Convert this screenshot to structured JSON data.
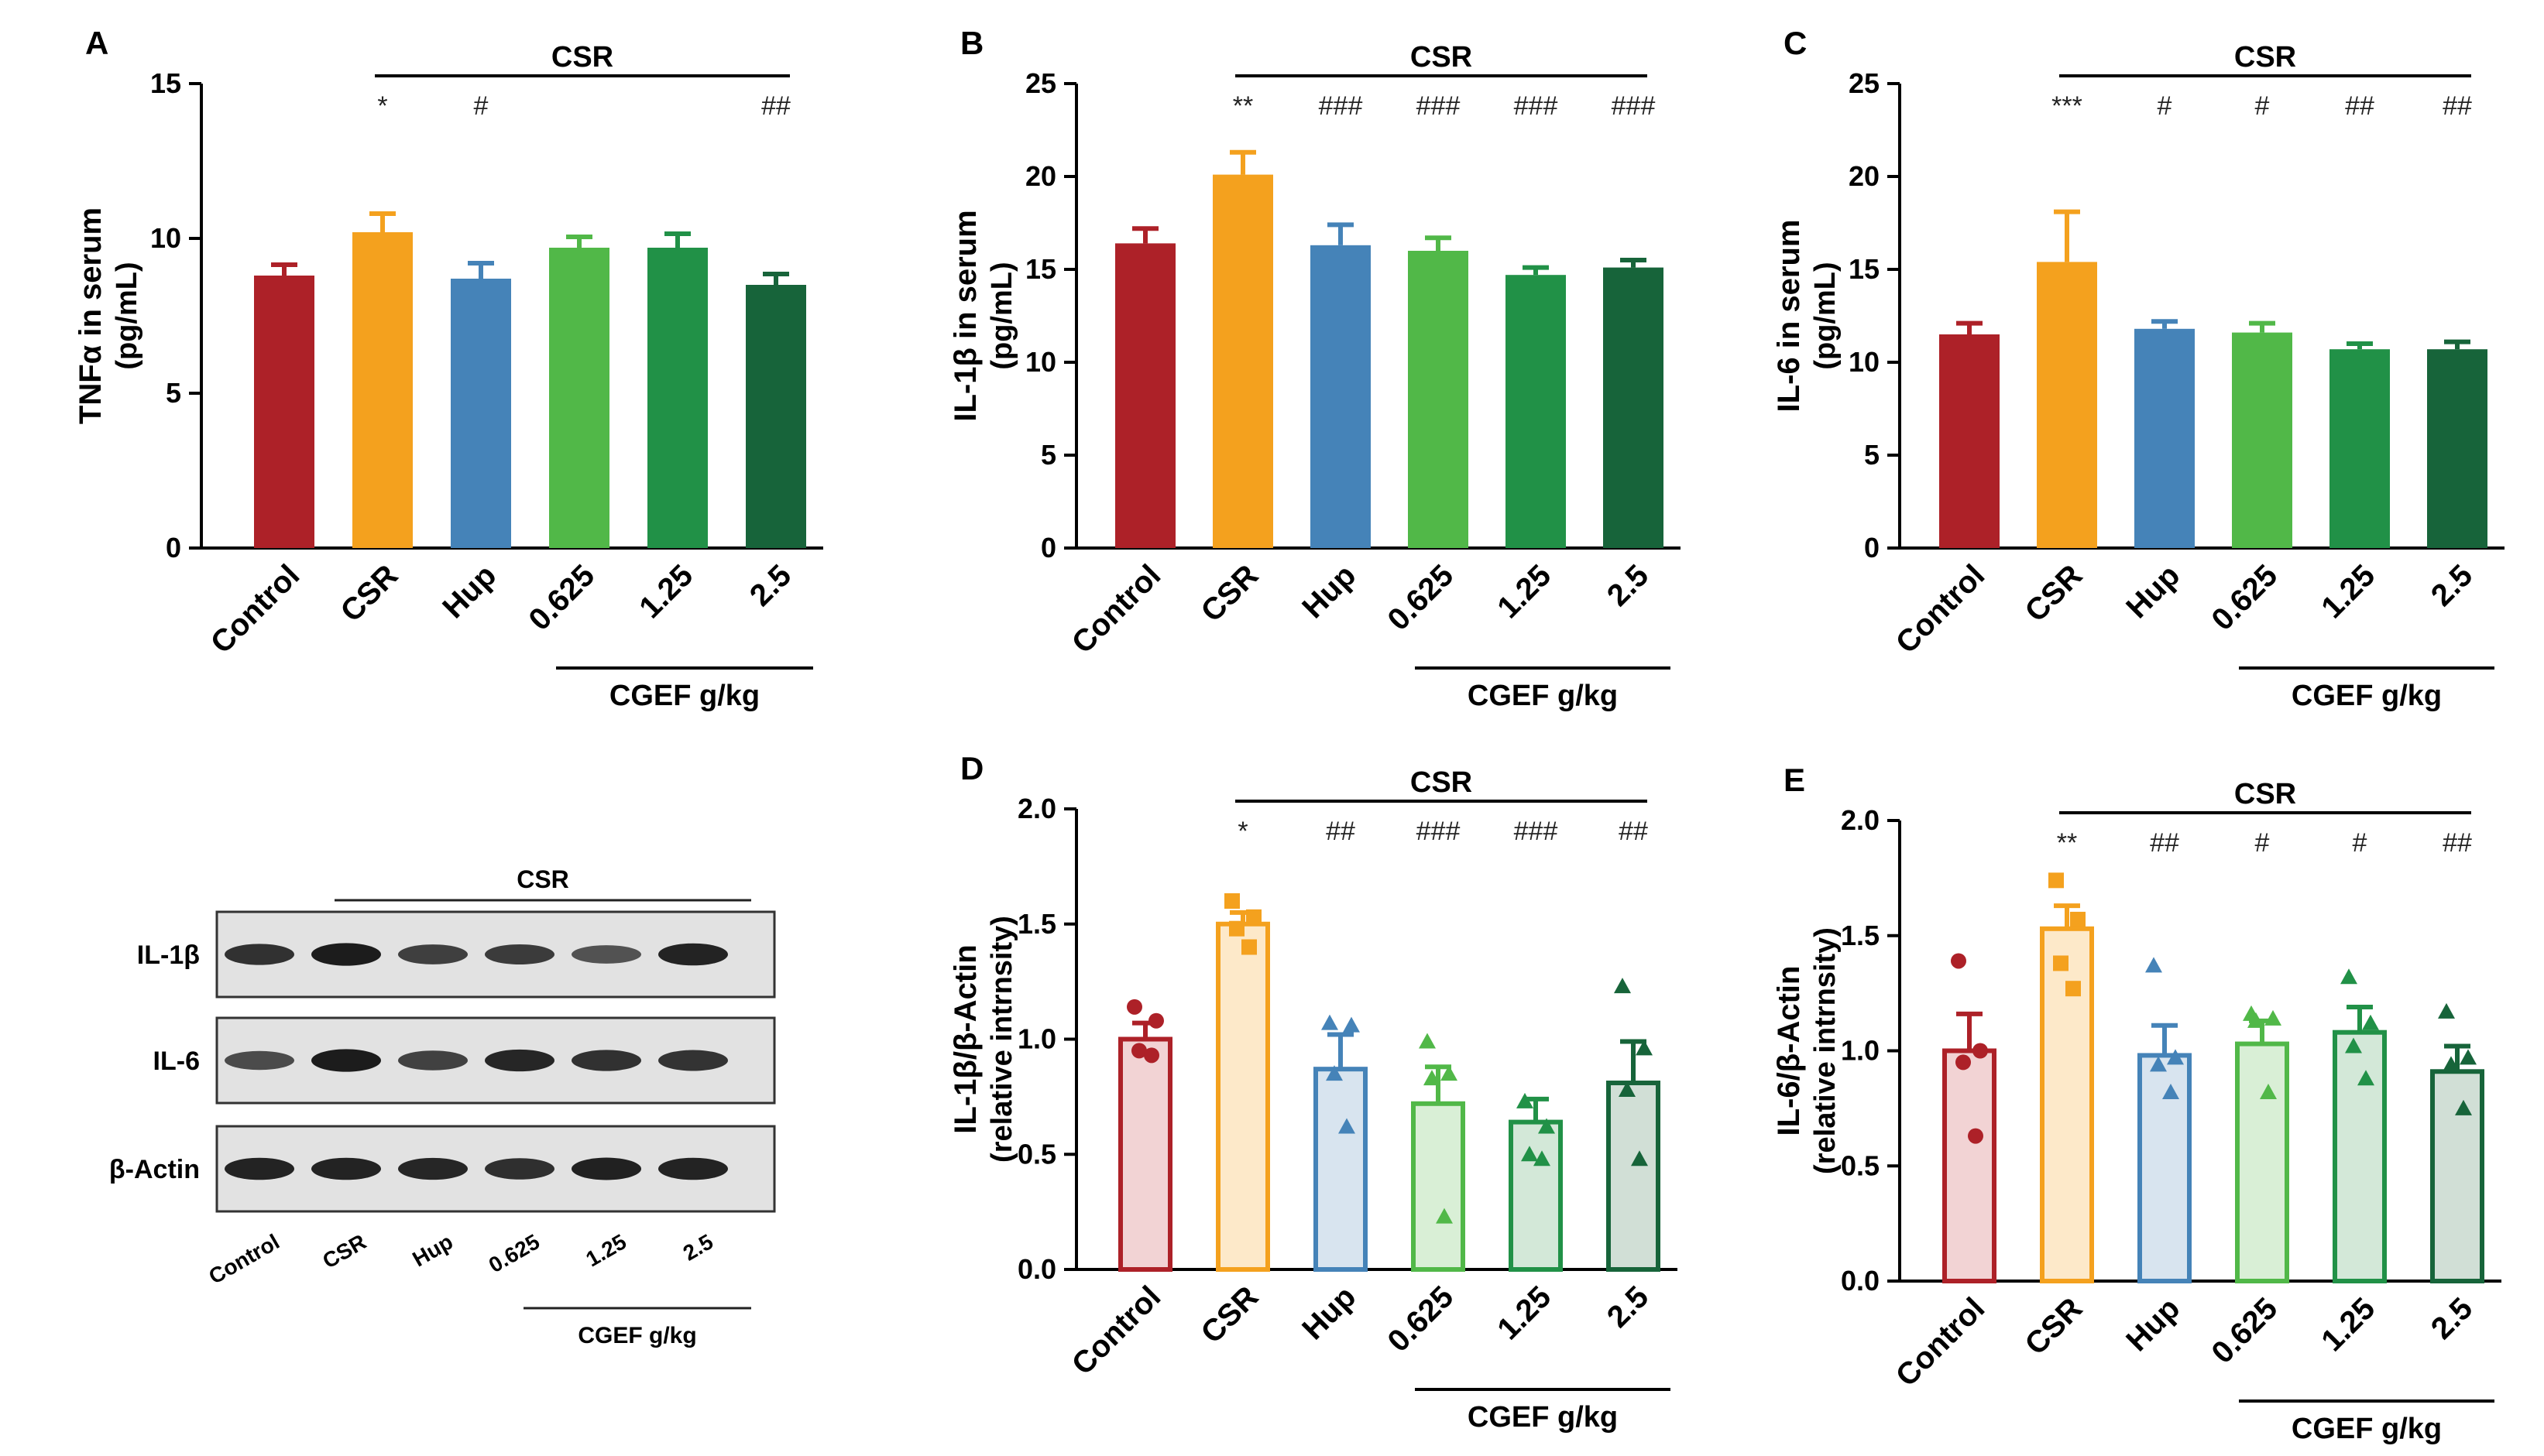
{
  "figure": {
    "colors": {
      "control": "#ad2128",
      "csr": "#f4a11e",
      "hup": "#4583b8",
      "c0625": "#51b848",
      "c125": "#219147",
      "c25": "#17643a",
      "axis": "#000000",
      "blot_bg": "#e2e2e2",
      "band": "#161616"
    }
  },
  "chart_data": [
    {
      "id": "A",
      "panel_label": "A",
      "type": "bar",
      "style": "solid",
      "categories": [
        "Control",
        "CSR",
        "Hup",
        "0.625",
        "1.25",
        "2.5"
      ],
      "values": [
        8.8,
        10.2,
        8.7,
        9.7,
        9.7,
        8.5
      ],
      "errors": [
        0.35,
        0.6,
        0.5,
        0.35,
        0.45,
        0.35
      ],
      "sig": [
        "",
        "*",
        "#",
        "",
        "",
        "##"
      ],
      "ylabel": "TNFα in serum",
      "yunits": "(pg/mL)",
      "ylim": [
        0,
        15
      ],
      "ticks": [
        "0",
        "5",
        "10",
        "15"
      ],
      "group_label": "CSR",
      "dose_label": "CGEF g/kg"
    },
    {
      "id": "B",
      "panel_label": "B",
      "type": "bar",
      "style": "solid",
      "categories": [
        "Control",
        "CSR",
        "Hup",
        "0.625",
        "1.25",
        "2.5"
      ],
      "values": [
        16.4,
        20.1,
        16.3,
        16.0,
        14.7,
        15.1
      ],
      "errors": [
        0.8,
        1.2,
        1.1,
        0.7,
        0.4,
        0.4
      ],
      "sig": [
        "",
        "**",
        "###",
        "###",
        "###",
        "###"
      ],
      "ylabel": "IL-1β in serum",
      "yunits": "(pg/mL)",
      "ylim": [
        0,
        25
      ],
      "ticks": [
        "0",
        "5",
        "10",
        "15",
        "20",
        "25"
      ],
      "group_label": "CSR",
      "dose_label": "CGEF g/kg"
    },
    {
      "id": "C",
      "panel_label": "C",
      "type": "bar",
      "style": "solid",
      "categories": [
        "Control",
        "CSR",
        "Hup",
        "0.625",
        "1.25",
        "2.5"
      ],
      "values": [
        11.5,
        15.4,
        11.8,
        11.6,
        10.7,
        10.7
      ],
      "errors": [
        0.6,
        2.7,
        0.4,
        0.5,
        0.3,
        0.4
      ],
      "sig": [
        "",
        "***",
        "#",
        "#",
        "##",
        "##"
      ],
      "ylabel": "IL-6 in serum",
      "yunits": "(pg/mL)",
      "ylim": [
        0,
        25
      ],
      "ticks": [
        "0",
        "5",
        "10",
        "15",
        "20",
        "25"
      ],
      "group_label": "CSR",
      "dose_label": "CGEF g/kg"
    },
    {
      "id": "D",
      "panel_label": "D",
      "type": "bar",
      "style": "open",
      "categories": [
        "Control",
        "CSR",
        "Hup",
        "0.625",
        "1.25",
        "2.5"
      ],
      "values": [
        1.0,
        1.5,
        0.87,
        0.72,
        0.64,
        0.81
      ],
      "errors": [
        0.07,
        0.05,
        0.15,
        0.16,
        0.1,
        0.18
      ],
      "points": [
        [
          1.14,
          1.08,
          0.95,
          0.93
        ],
        [
          1.6,
          1.53,
          1.48,
          1.4
        ],
        [
          1.07,
          1.06,
          0.85,
          0.62
        ],
        [
          0.99,
          0.85,
          0.83,
          0.23
        ],
        [
          0.73,
          0.62,
          0.5,
          0.48
        ],
        [
          1.23,
          0.96,
          0.78,
          0.48
        ]
      ],
      "markers": [
        "circle",
        "square",
        "triangle",
        "triangle",
        "triangle",
        "triangle"
      ],
      "sig": [
        "",
        "*",
        "##",
        "###",
        "###",
        "##"
      ],
      "ylabel": "IL-1β/β-Actin",
      "yunits": "(relative intrnsity)",
      "ylim": [
        0,
        2
      ],
      "ticks": [
        "0.0",
        "0.5",
        "1.0",
        "1.5",
        "2.0"
      ],
      "group_label": "CSR",
      "dose_label": "CGEF g/kg"
    },
    {
      "id": "E",
      "panel_label": "E",
      "type": "bar",
      "style": "open",
      "categories": [
        "Control",
        "CSR",
        "Hup",
        "0.625",
        "1.25",
        "2.5"
      ],
      "values": [
        1.0,
        1.53,
        0.98,
        1.03,
        1.08,
        0.91
      ],
      "errors": [
        0.16,
        0.1,
        0.13,
        0.1,
        0.11,
        0.11
      ],
      "points": [
        [
          1.39,
          1.0,
          0.95,
          0.63
        ],
        [
          1.74,
          1.57,
          1.38,
          1.27
        ],
        [
          1.37,
          0.97,
          0.94,
          0.82
        ],
        [
          1.16,
          1.14,
          1.13,
          0.82
        ],
        [
          1.32,
          1.12,
          1.02,
          0.88
        ],
        [
          1.17,
          0.97,
          0.94,
          0.75
        ]
      ],
      "markers": [
        "circle",
        "square",
        "triangle",
        "triangle",
        "triangle",
        "triangle"
      ],
      "sig": [
        "",
        "**",
        "##",
        "#",
        "#",
        "##"
      ],
      "ylabel": "IL-6/β-Actin",
      "yunits": "(relative intrnsity)",
      "ylim": [
        0,
        2
      ],
      "ticks": [
        "0.0",
        "0.5",
        "1.0",
        "1.5",
        "2.0"
      ],
      "group_label": "CSR",
      "dose_label": "CGEF g/kg"
    }
  ],
  "blot": {
    "group_label": "CSR",
    "rows": [
      {
        "label": "IL-1β",
        "intensity": [
          0.8,
          0.95,
          0.7,
          0.72,
          0.55,
          0.9
        ]
      },
      {
        "label": "IL-6",
        "intensity": [
          0.6,
          0.95,
          0.68,
          0.88,
          0.8,
          0.78
        ]
      },
      {
        "label": "β-Actin",
        "intensity": [
          0.9,
          0.9,
          0.88,
          0.82,
          0.92,
          0.9
        ]
      }
    ],
    "lanes": [
      "Control",
      "CSR",
      "Hup",
      "0.625",
      "1.25",
      "2.5"
    ],
    "dose_label": "CGEF g/kg"
  }
}
